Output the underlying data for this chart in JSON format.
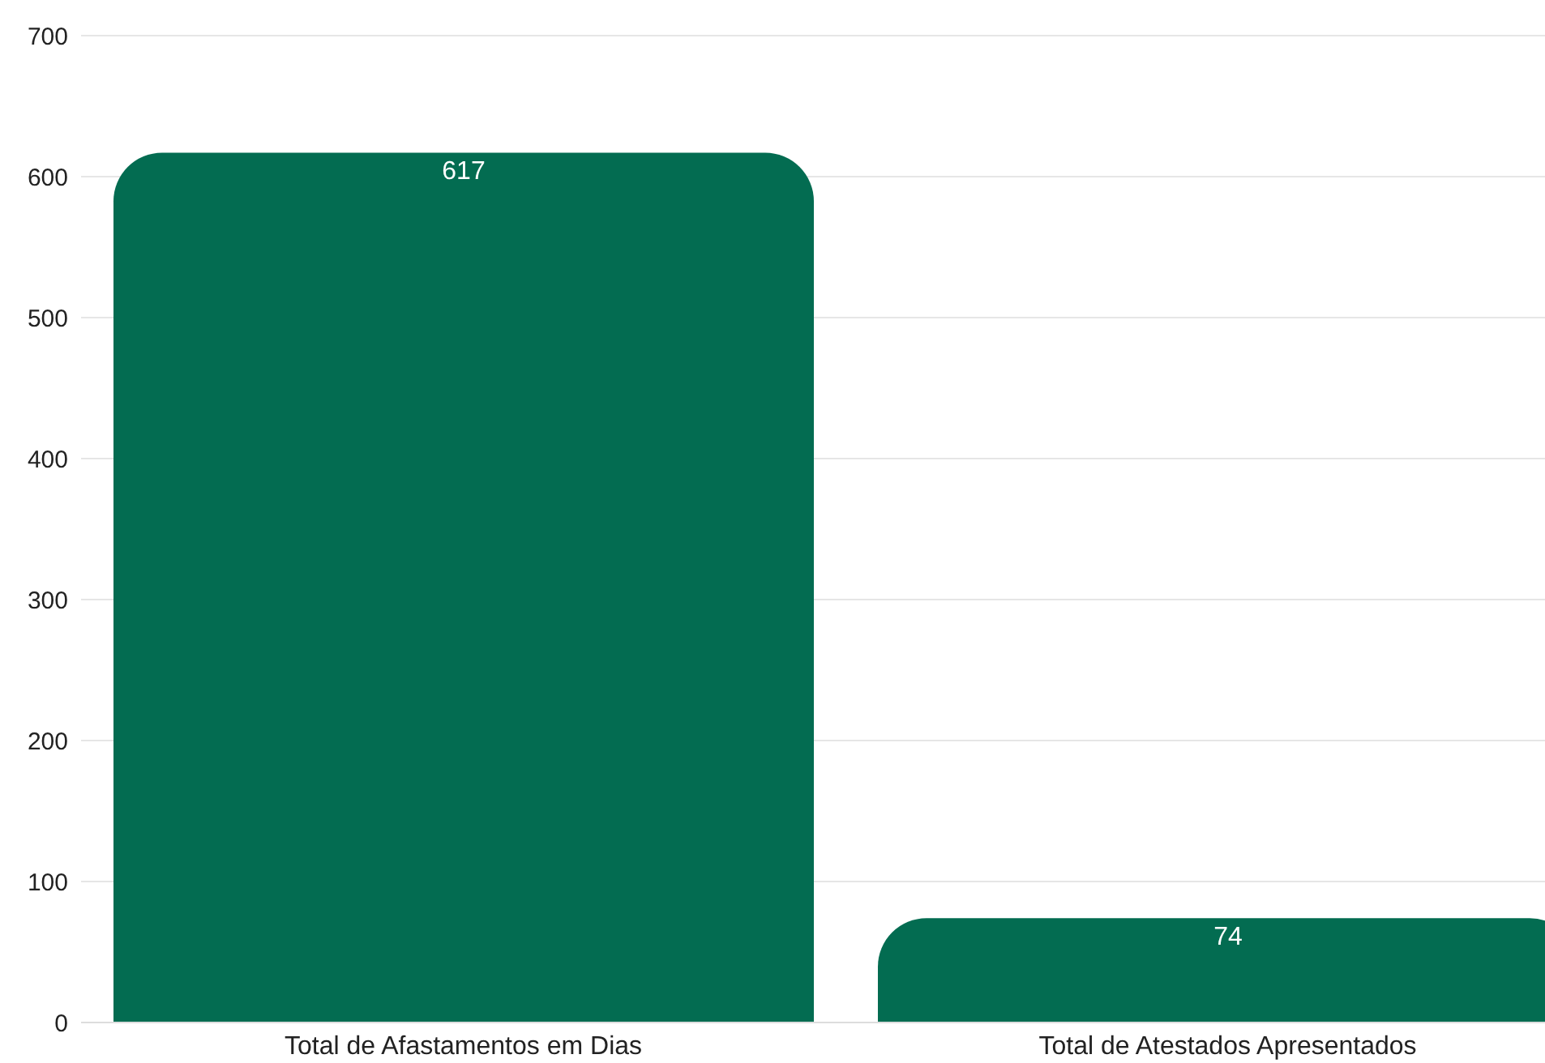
{
  "chart_data": {
    "type": "bar",
    "categories": [
      "Total de Afastamentos em Dias",
      "Total de Atestados Apresentados"
    ],
    "values": [
      617,
      74
    ],
    "color": "#036c51",
    "ylim": [
      0,
      700
    ],
    "yticks": [
      0,
      100,
      200,
      300,
      400,
      500,
      600,
      700
    ],
    "grid": "y",
    "data_labels": true
  }
}
